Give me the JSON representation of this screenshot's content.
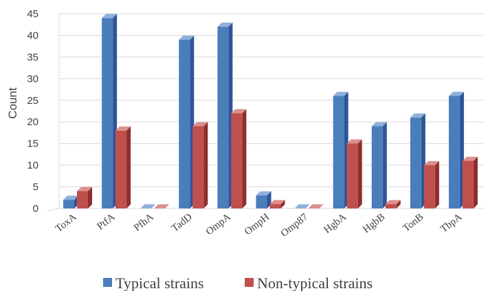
{
  "chart_data": {
    "type": "bar",
    "style": "3d-clustered-column",
    "ylabel": "Count",
    "ylim": [
      0,
      45
    ],
    "ytick_step": 5,
    "grid": true,
    "legend_position": "bottom",
    "categories": [
      "ToxA",
      "PtfA",
      "PfhA",
      "TadD",
      "OmpA",
      "OmpH",
      "Omp87",
      "HgbA",
      "HgbB",
      "TonB",
      "TbpA"
    ],
    "series": [
      {
        "name": "Typical strains",
        "color": "#4a7ebb",
        "side_color": "#2f5597",
        "top_color": "#8fb0dd",
        "values": [
          2,
          44,
          0,
          39,
          42,
          3,
          0,
          26,
          19,
          21,
          26
        ]
      },
      {
        "name": "Non-typical strains",
        "color": "#c0504d",
        "side_color": "#8c2f2d",
        "top_color": "#dc8f8d",
        "values": [
          4,
          18,
          0,
          19,
          22,
          1,
          0,
          15,
          1,
          10,
          11
        ]
      }
    ]
  }
}
